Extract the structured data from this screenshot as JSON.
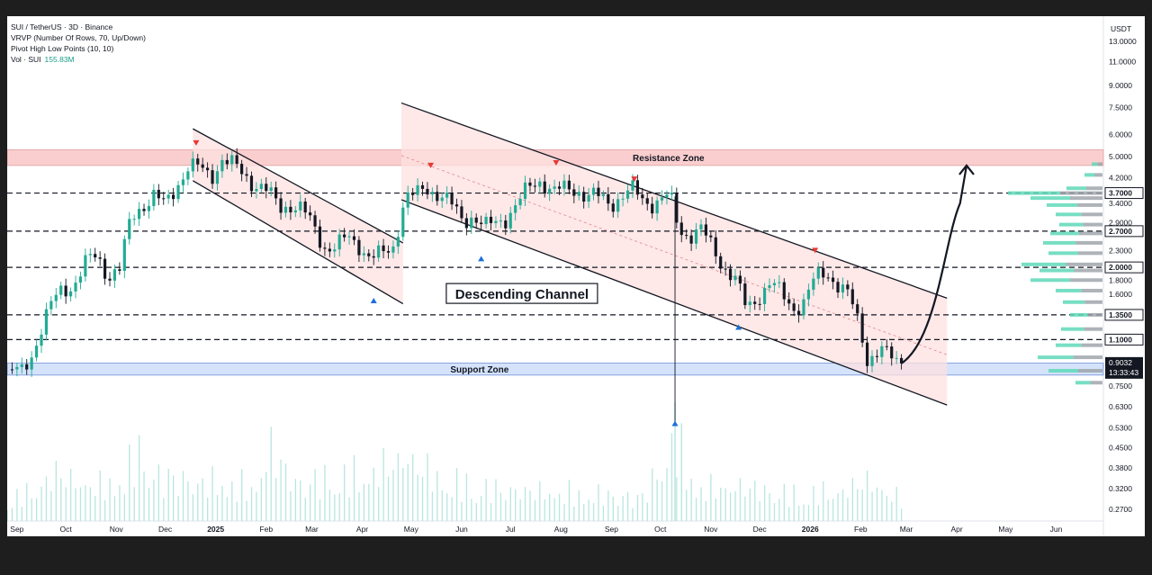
{
  "legend": {
    "symbol_line": "SUI / TetherUS · 3D · Binance",
    "vrvp_line": "VRVP (Number Of Rows, 70, Up/Down)",
    "pivot_line": "Pivot High Low Points (10, 10)",
    "vol_label": "Vol · SUI",
    "vol_value": "155.83M"
  },
  "colors": {
    "up": "#22ab94",
    "down": "#131722",
    "resistance_fill": "#f9c5c5",
    "resistance_border": "#e0a0a0",
    "support_fill": "#cfe0fb",
    "support_border": "#6e8fd6",
    "channel_fill": "#fde0e0",
    "volume": "#b8e6df",
    "pivot_high": "#e53935",
    "pivot_low": "#1e6fd9",
    "profile_up": "#5fd8b9",
    "profile_down": "#9aa0a8"
  },
  "chart_data": {
    "type": "candlestick",
    "symbol": "SUI / TetherUS",
    "interval": "3D",
    "exchange": "Binance",
    "y_scale": "log",
    "ylim": [
      0.245,
      16.0
    ],
    "y_currency": "USDT",
    "y_ticks": [
      13.0,
      11.0,
      9.0,
      7.5,
      6.0,
      5.0,
      4.2,
      3.4,
      2.3,
      1.6,
      0.75,
      0.63,
      0.53,
      0.45,
      0.38,
      0.32,
      0.27
    ],
    "y_tick_labels": [
      "13.0000",
      "11.0000",
      "9.0000",
      "7.5000",
      "6.0000",
      "5.0000",
      "4.2000",
      "3.4000",
      "2.3000",
      "1.6000",
      "0.7500",
      "0.6300",
      "0.5300",
      "0.4500",
      "0.3800",
      "0.3200",
      "0.2700"
    ],
    "key_levels": [
      {
        "value": 3.7,
        "label": "3.7000"
      },
      {
        "value": 2.7,
        "label": "2.7000"
      },
      {
        "value": 2.0,
        "label": "2.0000"
      },
      {
        "value": 1.35,
        "label": "1.3500"
      },
      {
        "value": 1.1,
        "label": "1.1000"
      }
    ],
    "partial_tick_labels": [
      {
        "value": 2.9,
        "text": "2.9000"
      },
      {
        "value": 1.8,
        "text": "1.8000"
      }
    ],
    "last_price": {
      "value": 0.9032,
      "label": "0.9032",
      "countdown": "13:33:43"
    },
    "x_axis": {
      "start": "2024-08-26",
      "end": "2026-06-30",
      "labels": [
        {
          "date": "2024-09-01",
          "text": "Sep",
          "bold": false
        },
        {
          "date": "2024-10-01",
          "text": "Oct",
          "bold": false
        },
        {
          "date": "2024-11-01",
          "text": "Nov",
          "bold": false
        },
        {
          "date": "2024-12-01",
          "text": "Dec",
          "bold": false
        },
        {
          "date": "2025-01-01",
          "text": "2025",
          "bold": true
        },
        {
          "date": "2025-02-01",
          "text": "Feb",
          "bold": false
        },
        {
          "date": "2025-03-01",
          "text": "Mar",
          "bold": false
        },
        {
          "date": "2025-04-01",
          "text": "Apr",
          "bold": false
        },
        {
          "date": "2025-05-01",
          "text": "May",
          "bold": false
        },
        {
          "date": "2025-06-01",
          "text": "Jun",
          "bold": false
        },
        {
          "date": "2025-07-01",
          "text": "Jul",
          "bold": false
        },
        {
          "date": "2025-08-01",
          "text": "Aug",
          "bold": false
        },
        {
          "date": "2025-09-01",
          "text": "Sep",
          "bold": false
        },
        {
          "date": "2025-10-01",
          "text": "Oct",
          "bold": false
        },
        {
          "date": "2025-11-01",
          "text": "Nov",
          "bold": false
        },
        {
          "date": "2025-12-01",
          "text": "Dec",
          "bold": false
        },
        {
          "date": "2026-01-01",
          "text": "2026",
          "bold": true
        },
        {
          "date": "2026-02-01",
          "text": "Feb",
          "bold": false
        },
        {
          "date": "2026-03-01",
          "text": "Mar",
          "bold": false
        },
        {
          "date": "2026-04-01",
          "text": "Apr",
          "bold": false
        },
        {
          "date": "2026-05-01",
          "text": "May",
          "bold": false
        },
        {
          "date": "2026-06-01",
          "text": "Jun",
          "bold": false
        }
      ]
    },
    "close_path": [
      [
        "2024-08-26",
        0.86
      ],
      [
        "2024-09-03",
        0.82
      ],
      [
        "2024-09-10",
        0.98
      ],
      [
        "2024-09-15",
        1.18
      ],
      [
        "2024-09-22",
        1.45
      ],
      [
        "2024-09-29",
        1.68
      ],
      [
        "2024-10-06",
        1.75
      ],
      [
        "2024-10-13",
        2.05
      ],
      [
        "2024-10-20",
        2.2
      ],
      [
        "2024-10-27",
        1.9
      ],
      [
        "2024-11-03",
        1.95
      ],
      [
        "2024-11-10",
        3.0
      ],
      [
        "2024-11-17",
        3.4
      ],
      [
        "2024-11-24",
        3.6
      ],
      [
        "2024-12-01",
        3.3
      ],
      [
        "2024-12-08",
        4.0
      ],
      [
        "2024-12-15",
        4.6
      ],
      [
        "2024-12-22",
        4.5
      ],
      [
        "2024-12-29",
        4.3
      ],
      [
        "2025-01-05",
        4.9
      ],
      [
        "2025-01-12",
        4.6
      ],
      [
        "2025-01-19",
        4.3
      ],
      [
        "2025-01-26",
        4.0
      ],
      [
        "2025-02-02",
        3.7
      ],
      [
        "2025-02-09",
        3.3
      ],
      [
        "2025-02-16",
        3.4
      ],
      [
        "2025-02-23",
        3.2
      ],
      [
        "2025-03-02",
        2.8
      ],
      [
        "2025-03-09",
        2.4
      ],
      [
        "2025-03-16",
        2.35
      ],
      [
        "2025-03-23",
        2.55
      ],
      [
        "2025-03-30",
        2.45
      ],
      [
        "2025-04-06",
        2.15
      ],
      [
        "2025-04-13",
        2.2
      ],
      [
        "2025-04-20",
        2.4
      ],
      [
        "2025-04-27",
        3.55
      ],
      [
        "2025-05-04",
        3.6
      ],
      [
        "2025-05-11",
        3.9
      ],
      [
        "2025-05-18",
        3.7
      ],
      [
        "2025-05-25",
        3.35
      ],
      [
        "2025-06-01",
        3.0
      ],
      [
        "2025-06-08",
        3.1
      ],
      [
        "2025-06-15",
        2.75
      ],
      [
        "2025-06-22",
        2.9
      ],
      [
        "2025-06-29",
        3.1
      ],
      [
        "2025-07-06",
        3.4
      ],
      [
        "2025-07-13",
        3.9
      ],
      [
        "2025-07-20",
        4.2
      ],
      [
        "2025-07-27",
        3.7
      ],
      [
        "2025-08-03",
        3.8
      ],
      [
        "2025-08-10",
        3.9
      ],
      [
        "2025-08-17",
        3.6
      ],
      [
        "2025-08-24",
        3.55
      ],
      [
        "2025-08-31",
        3.45
      ],
      [
        "2025-09-07",
        3.6
      ],
      [
        "2025-09-14",
        3.75
      ],
      [
        "2025-09-21",
        3.5
      ],
      [
        "2025-09-28",
        3.45
      ],
      [
        "2025-10-05",
        3.55
      ],
      [
        "2025-10-09",
        3.35
      ],
      [
        "2025-10-12",
        2.75
      ],
      [
        "2025-10-19",
        2.65
      ],
      [
        "2025-10-26",
        2.7
      ],
      [
        "2025-11-02",
        2.35
      ],
      [
        "2025-11-09",
        2.05
      ],
      [
        "2025-11-16",
        1.8
      ],
      [
        "2025-11-23",
        1.4
      ],
      [
        "2025-11-30",
        1.6
      ],
      [
        "2025-12-07",
        1.75
      ],
      [
        "2025-12-14",
        1.6
      ],
      [
        "2025-12-21",
        1.45
      ],
      [
        "2025-12-28",
        1.5
      ],
      [
        "2026-01-04",
        1.8
      ],
      [
        "2026-01-11",
        1.95
      ],
      [
        "2026-01-18",
        1.75
      ],
      [
        "2026-01-25",
        1.55
      ],
      [
        "2026-02-01",
        1.2
      ],
      [
        "2026-02-05",
        0.95
      ],
      [
        "2026-02-12",
        1.0
      ],
      [
        "2026-02-19",
        0.95
      ],
      [
        "2026-02-26",
        0.9032
      ]
    ],
    "volume_ylim": [
      0,
      155
    ],
    "volume_samples": [
      [
        "2024-08-26",
        40
      ],
      [
        "2024-09-10",
        55
      ],
      [
        "2024-09-25",
        90
      ],
      [
        "2024-10-10",
        70
      ],
      [
        "2024-10-25",
        65
      ],
      [
        "2024-11-08",
        95
      ],
      [
        "2024-11-15",
        130
      ],
      [
        "2024-11-25",
        85
      ],
      [
        "2024-12-10",
        80
      ],
      [
        "2024-12-25",
        70
      ],
      [
        "2025-01-05",
        75
      ],
      [
        "2025-01-25",
        60
      ],
      [
        "2025-02-03",
        135
      ],
      [
        "2025-02-20",
        70
      ],
      [
        "2025-03-10",
        80
      ],
      [
        "2025-04-07",
        90
      ],
      [
        "2025-04-28",
        120
      ],
      [
        "2025-05-20",
        75
      ],
      [
        "2025-06-20",
        60
      ],
      [
        "2025-07-20",
        55
      ],
      [
        "2025-08-20",
        50
      ],
      [
        "2025-09-20",
        45
      ],
      [
        "2025-10-10",
        150
      ],
      [
        "2025-10-25",
        60
      ],
      [
        "2025-11-20",
        65
      ],
      [
        "2025-12-20",
        50
      ],
      [
        "2026-01-20",
        55
      ],
      [
        "2026-02-05",
        75
      ],
      [
        "2026-02-26",
        40
      ]
    ],
    "volume_profile": [
      [
        3.85,
        40
      ],
      [
        3.7,
        105
      ],
      [
        3.55,
        80
      ],
      [
        3.35,
        62
      ],
      [
        3.1,
        52
      ],
      [
        2.85,
        48
      ],
      [
        2.65,
        58
      ],
      [
        2.45,
        66
      ],
      [
        2.25,
        60
      ],
      [
        2.05,
        90
      ],
      [
        1.95,
        70
      ],
      [
        1.8,
        80
      ],
      [
        1.65,
        52
      ],
      [
        1.5,
        44
      ],
      [
        1.35,
        36
      ],
      [
        1.2,
        46
      ],
      [
        1.05,
        52
      ],
      [
        0.95,
        72
      ],
      [
        0.85,
        60
      ],
      [
        0.77,
        30
      ],
      [
        4.3,
        20
      ],
      [
        4.7,
        12
      ]
    ],
    "zones": [
      {
        "name": "Resistance Zone",
        "low": 4.65,
        "high": 5.3
      },
      {
        "name": "Support Zone",
        "low": 0.82,
        "high": 0.905
      }
    ],
    "channels": [
      {
        "name": "Flag",
        "upper": [
          [
            "2024-12-18",
            6.3
          ],
          [
            "2025-04-26",
            2.45
          ]
        ],
        "lower": [
          [
            "2024-12-18",
            4.1
          ],
          [
            "2025-04-26",
            1.48
          ]
        ]
      },
      {
        "name": "Descending Channel",
        "upper": [
          [
            "2025-04-25",
            7.8
          ],
          [
            "2026-03-26",
            1.55
          ]
        ],
        "lower": [
          [
            "2025-04-25",
            3.5
          ],
          [
            "2026-03-26",
            0.64
          ]
        ],
        "midline": [
          [
            "2025-04-25",
            5.05
          ],
          [
            "2026-03-26",
            0.97
          ]
        ]
      }
    ],
    "pivots": [
      {
        "date": "2024-12-20",
        "value": 5.6,
        "type": "high"
      },
      {
        "date": "2025-04-08",
        "value": 1.52,
        "type": "low"
      },
      {
        "date": "2025-05-13",
        "value": 4.65,
        "type": "high"
      },
      {
        "date": "2025-06-13",
        "value": 2.15,
        "type": "low"
      },
      {
        "date": "2025-07-29",
        "value": 4.75,
        "type": "high"
      },
      {
        "date": "2025-09-15",
        "value": 4.15,
        "type": "high"
      },
      {
        "date": "2025-10-10",
        "value": 0.55,
        "type": "low"
      },
      {
        "date": "2025-11-18",
        "value": 1.22,
        "type": "low"
      },
      {
        "date": "2026-01-04",
        "value": 2.3,
        "type": "high"
      }
    ],
    "projection": [
      [
        "2026-02-26",
        0.9032
      ],
      [
        "2026-03-20",
        1.15
      ],
      [
        "2026-04-03",
        3.4
      ],
      [
        "2026-04-07",
        4.65
      ]
    ],
    "annotations": {
      "resistance_label": "Resistance Zone",
      "support_label": "Support Zone",
      "channel_label": "Descending Channel"
    }
  }
}
